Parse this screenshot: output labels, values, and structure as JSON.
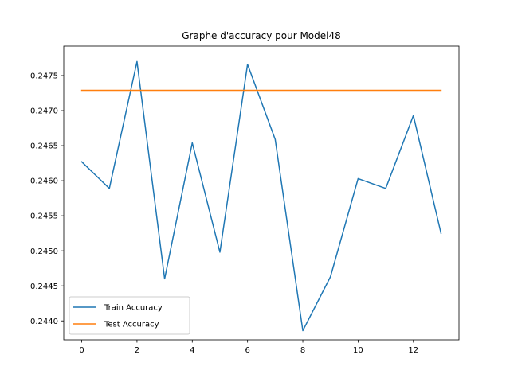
{
  "chart_data": {
    "type": "line",
    "title": "Graphe d'accuracy pour Model48",
    "xlabel": "",
    "ylabel": "",
    "x": [
      0,
      1,
      2,
      3,
      4,
      5,
      6,
      7,
      8,
      9,
      10,
      11,
      12,
      13
    ],
    "xlim": [
      -0.65,
      13.65
    ],
    "ylim": [
      0.24373,
      0.24792
    ],
    "xticks": [
      0,
      2,
      4,
      6,
      8,
      10,
      12
    ],
    "xtick_labels": [
      "0",
      "2",
      "4",
      "6",
      "8",
      "10",
      "12"
    ],
    "yticks": [
      0.244,
      0.2445,
      0.245,
      0.2455,
      0.246,
      0.2465,
      0.247,
      0.2475
    ],
    "ytick_labels": [
      "0.2440",
      "0.2445",
      "0.2450",
      "0.2455",
      "0.2460",
      "0.2465",
      "0.2470",
      "0.2475"
    ],
    "grid": false,
    "legend_position": "lower-left",
    "series": [
      {
        "name": "Train Accuracy",
        "color": "#1f77b4",
        "values": [
          0.24627,
          0.24589,
          0.2477,
          0.2446,
          0.24654,
          0.24498,
          0.24766,
          0.24659,
          0.24386,
          0.24463,
          0.24603,
          0.24589,
          0.24693,
          0.24525
        ]
      },
      {
        "name": "Test Accuracy",
        "color": "#ff7f0e",
        "values": [
          0.24729,
          0.24729,
          0.24729,
          0.24729,
          0.24729,
          0.24729,
          0.24729,
          0.24729,
          0.24729,
          0.24729,
          0.24729,
          0.24729,
          0.24729,
          0.24729
        ]
      }
    ]
  }
}
